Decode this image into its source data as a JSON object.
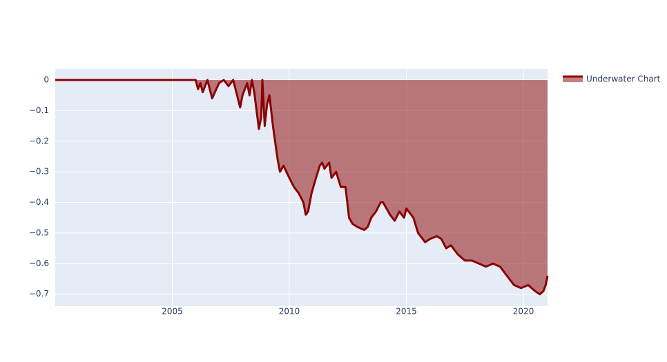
{
  "chart_data": {
    "type": "area",
    "series": [
      {
        "name": "Underwater Chart",
        "color": "#8b0000",
        "fill_color": "rgba(139,0,0,0.5)",
        "x": [
          2000.0,
          2006.0,
          2006.1,
          2006.2,
          2006.3,
          2006.5,
          2006.6,
          2006.7,
          2007.0,
          2007.2,
          2007.4,
          2007.6,
          2007.7,
          2007.9,
          2008.0,
          2008.2,
          2008.3,
          2008.4,
          2008.5,
          2008.6,
          2008.7,
          2008.8,
          2008.85,
          2008.95,
          2009.05,
          2009.15,
          2009.3,
          2009.5,
          2009.6,
          2009.75,
          2010.0,
          2010.2,
          2010.4,
          2010.6,
          2010.7,
          2010.8,
          2010.95,
          2011.1,
          2011.3,
          2011.4,
          2011.5,
          2011.7,
          2011.8,
          2012.0,
          2012.2,
          2012.4,
          2012.55,
          2012.7,
          2012.9,
          2013.2,
          2013.35,
          2013.5,
          2013.7,
          2013.9,
          2014.0,
          2014.3,
          2014.5,
          2014.7,
          2014.9,
          2015.0,
          2015.1,
          2015.3,
          2015.5,
          2015.8,
          2016.0,
          2016.3,
          2016.5,
          2016.7,
          2016.9,
          2017.2,
          2017.5,
          2017.8,
          2018.1,
          2018.4,
          2018.7,
          2019.0,
          2019.3,
          2019.6,
          2019.9,
          2020.2,
          2020.5,
          2020.7,
          2020.85,
          2020.95,
          2021.03
        ],
        "values": [
          0,
          0,
          -0.03,
          -0.01,
          -0.04,
          0,
          -0.03,
          -0.06,
          -0.01,
          0,
          -0.02,
          0,
          -0.03,
          -0.09,
          -0.05,
          -0.01,
          -0.05,
          0,
          -0.04,
          -0.1,
          -0.16,
          -0.12,
          0,
          -0.15,
          -0.08,
          -0.05,
          -0.15,
          -0.26,
          -0.3,
          -0.28,
          -0.32,
          -0.35,
          -0.37,
          -0.4,
          -0.44,
          -0.43,
          -0.37,
          -0.33,
          -0.28,
          -0.27,
          -0.29,
          -0.27,
          -0.32,
          -0.3,
          -0.35,
          -0.35,
          -0.45,
          -0.47,
          -0.48,
          -0.49,
          -0.48,
          -0.45,
          -0.43,
          -0.4,
          -0.4,
          -0.44,
          -0.46,
          -0.43,
          -0.45,
          -0.42,
          -0.43,
          -0.45,
          -0.5,
          -0.53,
          -0.52,
          -0.51,
          -0.52,
          -0.55,
          -0.54,
          -0.57,
          -0.59,
          -0.59,
          -0.6,
          -0.61,
          -0.6,
          -0.61,
          -0.64,
          -0.67,
          -0.68,
          -0.67,
          -0.69,
          -0.7,
          -0.69,
          -0.67,
          -0.64
        ]
      }
    ],
    "xlim": [
      2000.0,
      2021.03
    ],
    "xticks": [
      2005,
      2010,
      2015,
      2020
    ],
    "ylim": [
      -0.739,
      0.036
    ],
    "yticks": [
      0,
      {
        "value": -0.1,
        "label": "−0.1"
      },
      {
        "value": -0.2,
        "label": "−0.2"
      },
      {
        "value": -0.3,
        "label": "−0.3"
      },
      {
        "value": -0.4,
        "label": "−0.4"
      },
      {
        "value": -0.5,
        "label": "−0.5"
      },
      {
        "value": -0.6,
        "label": "−0.6"
      },
      {
        "value": -0.7,
        "label": "−0.7"
      }
    ],
    "grid": true,
    "legend": "top-right"
  }
}
